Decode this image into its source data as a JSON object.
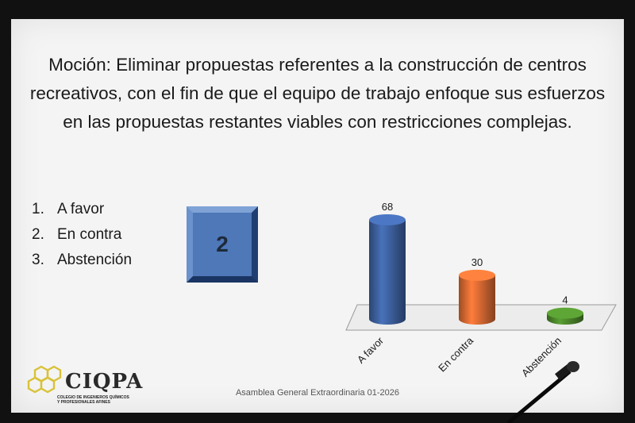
{
  "slide": {
    "title_lines": [
      "Moción: Eliminar propuestas referentes a la construcción de centros",
      "recreativos, con el fin de que el equipo de trabajo enfoque sus esfuerzos",
      "en las propuestas restantes viables con restricciones complejas."
    ],
    "options": [
      {
        "num": "1.",
        "label": "A favor"
      },
      {
        "num": "2.",
        "label": "En contra"
      },
      {
        "num": "3.",
        "label": "Abstención"
      }
    ],
    "result_number": "2",
    "footer": "Asamblea General Extraordinaria 01-2026"
  },
  "logo": {
    "name": "CIQPA",
    "subtitle_lines": [
      "COLEGIO DE INGENIEROS QUÍMICOS",
      "Y PROFESIONALES AFINES"
    ],
    "accent": "#d8c23a"
  },
  "chart_data": {
    "type": "bar",
    "style": "3d-cylinder",
    "categories": [
      "A favor",
      "En contra",
      "Abstención"
    ],
    "values": [
      68,
      30,
      4
    ],
    "colors": [
      "#3f63a3",
      "#e06d34",
      "#4e8a2c"
    ],
    "data_labels": [
      "68",
      "30",
      "4"
    ],
    "title": "",
    "xlabel": "",
    "ylabel": "",
    "ylim": [
      0,
      68
    ],
    "grid": false,
    "legend": "none"
  }
}
